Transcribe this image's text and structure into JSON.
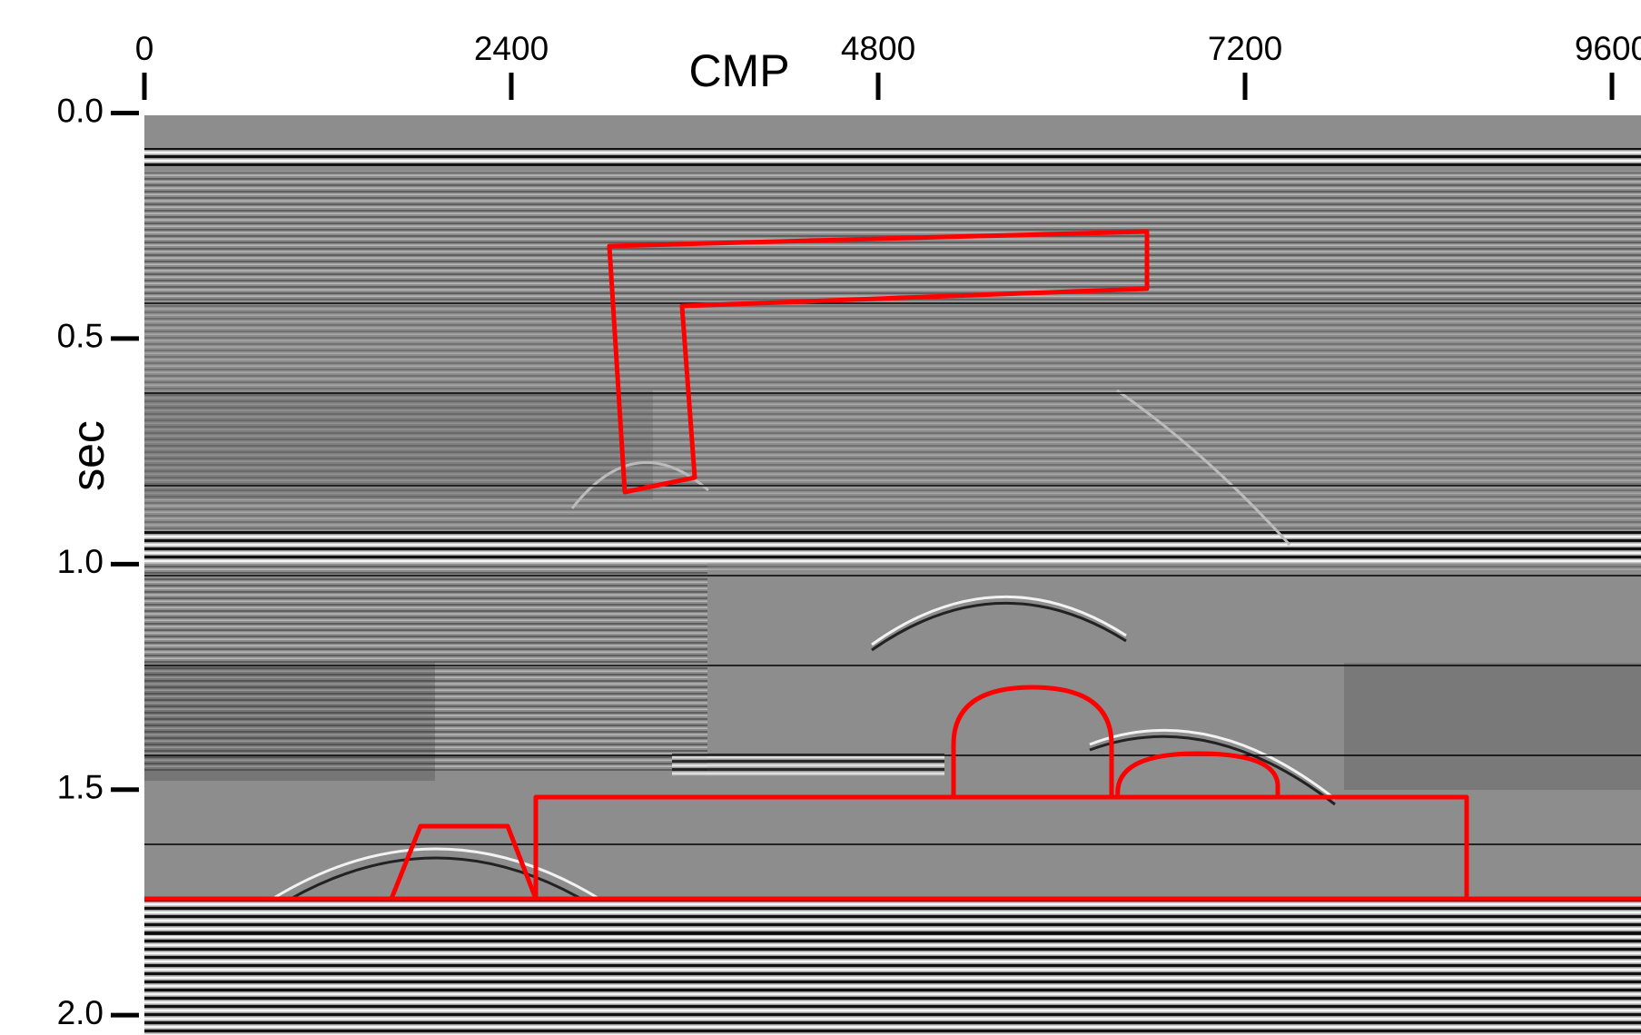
{
  "chart_data": {
    "type": "image",
    "xlabel": "CMP",
    "ylabel": "sec",
    "xlim": [
      0,
      9790
    ],
    "xticks": [
      0,
      2400,
      4800,
      7200,
      9600
    ],
    "ylim": [
      0,
      2.04
    ],
    "yticks": [
      {
        "value": 0,
        "label": "0.0"
      },
      0.5,
      {
        "value": 1,
        "label": "1.0"
      },
      1.5,
      {
        "value": 2,
        "label": "2.0"
      }
    ]
  }
}
